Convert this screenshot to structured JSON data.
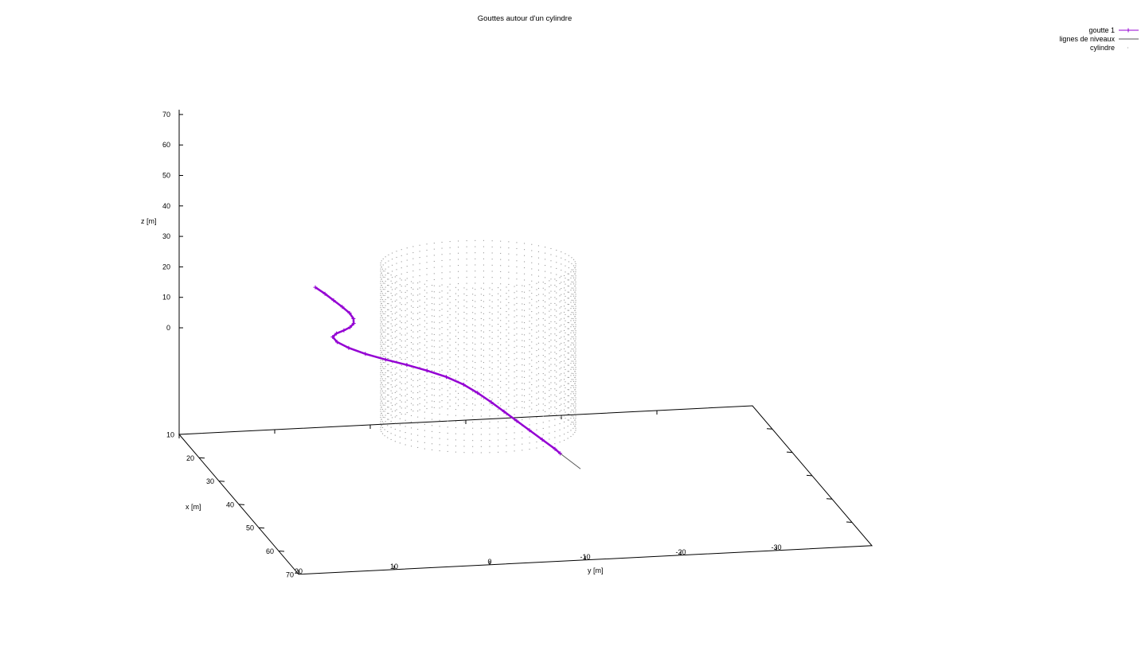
{
  "chart_data": {
    "type": "scatter",
    "title": "Gouttes autour d'un cylindre",
    "xlabel": "x [m]",
    "ylabel": "y [m]",
    "zlabel": "z [m]",
    "xlim": [
      10,
      70
    ],
    "ylim": [
      -40,
      20
    ],
    "zlim": [
      0,
      70
    ],
    "x_ticks": [
      "10",
      "20",
      "30",
      "40",
      "50",
      "60",
      "70"
    ],
    "y_ticks": [
      "20",
      "10",
      "0",
      "-10",
      "-20",
      "-30"
    ],
    "z_ticks": [
      "0",
      "10",
      "20",
      "30",
      "40",
      "50",
      "60",
      "70"
    ],
    "legend": {
      "position": "top-right"
    },
    "colors": {
      "goutte": "#9400d3",
      "niveaux": "#555555",
      "cylindre": "#999999"
    },
    "series": [
      {
        "name": "goutte 1",
        "style": "linespoints",
        "points": [
          [
            40.0,
            12.0,
            35.0
          ],
          [
            41.0,
            11.2,
            33.5
          ],
          [
            42.0,
            10.5,
            32.0
          ],
          [
            43.0,
            9.8,
            30.5
          ],
          [
            43.8,
            9.2,
            29.0
          ],
          [
            44.3,
            8.9,
            27.5
          ],
          [
            44.4,
            8.9,
            26.0
          ],
          [
            44.0,
            9.2,
            24.5
          ],
          [
            43.3,
            9.7,
            23.0
          ],
          [
            42.5,
            10.3,
            21.5
          ],
          [
            42.0,
            10.6,
            20.0
          ],
          [
            42.3,
            10.2,
            18.5
          ],
          [
            43.3,
            9.2,
            17.2
          ],
          [
            45.0,
            7.8,
            16.3
          ],
          [
            47.0,
            6.1,
            15.7
          ],
          [
            49.0,
            4.3,
            15.2
          ],
          [
            51.0,
            2.6,
            14.6
          ],
          [
            53.0,
            1.0,
            13.8
          ],
          [
            55.0,
            -0.4,
            12.6
          ],
          [
            56.7,
            -1.5,
            11.0
          ],
          [
            58.3,
            -2.6,
            9.0
          ],
          [
            59.9,
            -3.6,
            7.0
          ],
          [
            61.5,
            -4.6,
            5.0
          ],
          [
            63.1,
            -5.6,
            3.0
          ],
          [
            64.7,
            -6.6,
            1.0
          ],
          [
            66.3,
            -7.6,
            -1.0
          ],
          [
            67.0,
            -8.0,
            -2.0
          ]
        ]
      },
      {
        "name": "lignes de niveaux",
        "style": "lines"
      },
      {
        "name": "cylindre",
        "style": "dots"
      }
    ]
  }
}
